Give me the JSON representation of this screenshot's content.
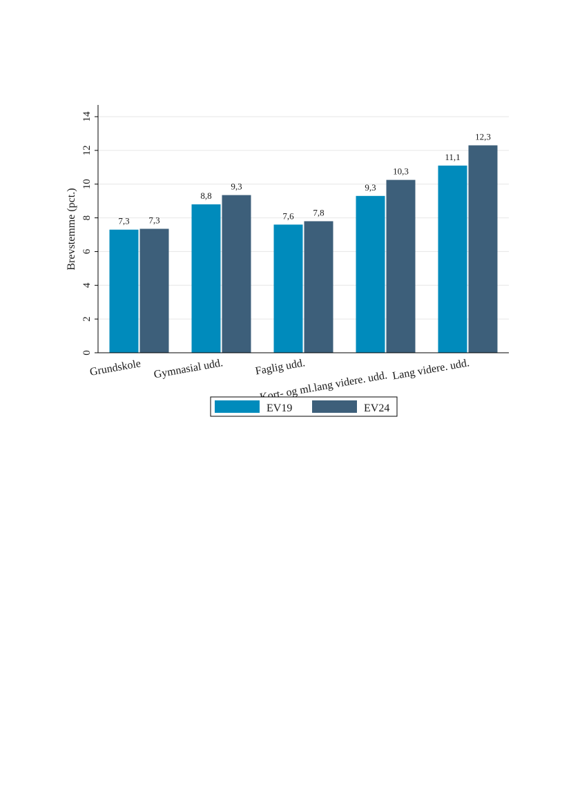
{
  "chart_data": {
    "type": "bar",
    "title": "",
    "xlabel": "",
    "ylabel": "Brevstemme (pct.)",
    "ylim": [
      0,
      14
    ],
    "yticks": [
      "0",
      "2",
      "4",
      "6",
      "8",
      "10",
      "12",
      "14"
    ],
    "categories": [
      "Grundskole",
      "Gymnasial udd.",
      "Faglig udd.",
      "Kort- og ml.lang videre. udd.",
      "Lang videre. udd."
    ],
    "series": [
      {
        "name": "EV19",
        "values": [
          7.3,
          8.8,
          7.6,
          9.3,
          11.1
        ],
        "labels": [
          "7,3",
          "8,8",
          "7,6",
          "9,3",
          "11,1"
        ],
        "color": "#008bbc"
      },
      {
        "name": "EV24",
        "values": [
          7.35,
          9.35,
          7.8,
          10.25,
          12.3
        ],
        "labels": [
          "7,3",
          "9,3",
          "7,8",
          "10,3",
          "12,3"
        ],
        "color": "#3d5f7a"
      }
    ],
    "grid": true,
    "legend": "bottom-center",
    "gridline_color": "#e6e6e6"
  }
}
